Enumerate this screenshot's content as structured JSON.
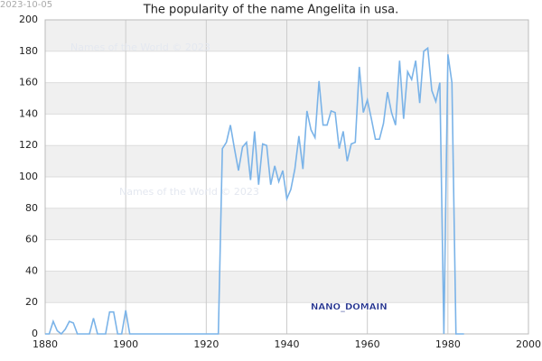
{
  "chart_data": {
    "type": "line",
    "title": "The popularity of the name Angelita in usa.",
    "date_stamp": "2023-10-05",
    "watermarks": [
      "Names of the World © 2023",
      "Names of the World © 2023",
      "NANO_DOMAIN"
    ],
    "x": [
      1880,
      1881,
      1882,
      1883,
      1884,
      1885,
      1886,
      1887,
      1888,
      1889,
      1890,
      1891,
      1892,
      1893,
      1894,
      1895,
      1896,
      1897,
      1898,
      1899,
      1900,
      1901,
      1902,
      1903,
      1904,
      1905,
      1906,
      1907,
      1908,
      1909,
      1910,
      1911,
      1912,
      1913,
      1914,
      1915,
      1916,
      1917,
      1918,
      1919,
      1920,
      1921,
      1922,
      1923,
      1924,
      1925,
      1926,
      1927,
      1928,
      1929,
      1930,
      1931,
      1932,
      1933,
      1934,
      1935,
      1936,
      1937,
      1938,
      1939,
      1940,
      1941,
      1942,
      1943,
      1944,
      1945,
      1946,
      1947,
      1948,
      1949,
      1950,
      1951,
      1952,
      1953,
      1954,
      1955,
      1956,
      1957,
      1958,
      1959,
      1960,
      1961,
      1962,
      1963,
      1964,
      1965,
      1966,
      1967,
      1968,
      1969,
      1970,
      1971,
      1972,
      1973,
      1974,
      1975,
      1976,
      1977,
      1978,
      1979,
      1980,
      1981,
      1982,
      1983,
      1984
    ],
    "series": [
      {
        "name": "Angelita",
        "color": "#7ab3e8",
        "values": [
          0,
          0,
          8,
          2,
          0,
          3,
          8,
          7,
          0,
          0,
          0,
          0,
          10,
          0,
          0,
          0,
          14,
          14,
          0,
          0,
          15,
          0,
          0,
          0,
          0,
          0,
          0,
          0,
          0,
          0,
          0,
          0,
          0,
          0,
          0,
          0,
          0,
          0,
          0,
          0,
          0,
          0,
          0,
          0,
          118,
          122,
          133,
          118,
          104,
          119,
          122,
          98,
          129,
          95,
          121,
          120,
          95,
          107,
          97,
          104,
          86,
          92,
          105,
          126,
          105,
          142,
          130,
          125,
          161,
          133,
          133,
          142,
          141,
          118,
          129,
          110,
          121,
          122,
          170,
          141,
          149,
          137,
          124,
          124,
          134,
          154,
          141,
          133,
          174,
          137,
          167,
          162,
          174,
          147,
          180,
          182,
          155,
          148,
          160,
          0,
          178,
          160,
          0,
          0,
          0
        ]
      }
    ],
    "xlim": [
      1880,
      2000
    ],
    "xticks": [
      1880,
      1900,
      1920,
      1940,
      1960,
      1980,
      2000
    ],
    "ylim": [
      0,
      200
    ],
    "yticks": [
      0,
      20,
      40,
      60,
      80,
      100,
      120,
      140,
      160,
      180,
      200
    ],
    "grid": true
  }
}
